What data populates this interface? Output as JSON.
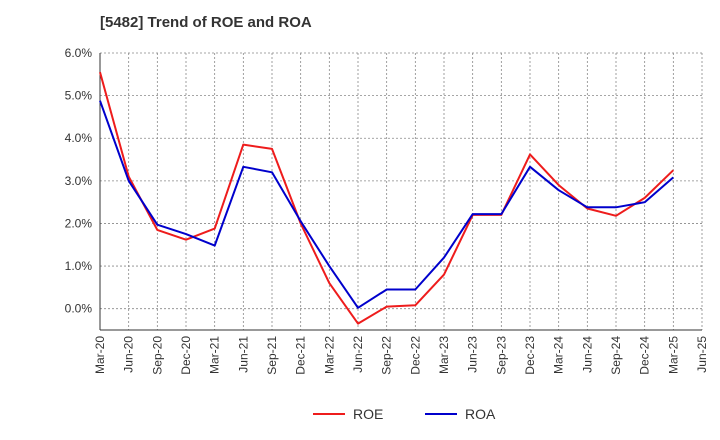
{
  "chart_data": {
    "type": "line",
    "title": "[5482]  Trend of ROE and ROA",
    "xlabel": "",
    "ylabel": "",
    "x": [
      "Mar-20",
      "Jun-20",
      "Sep-20",
      "Dec-20",
      "Mar-21",
      "Jun-21",
      "Sep-21",
      "Dec-21",
      "Mar-22",
      "Jun-22",
      "Sep-22",
      "Dec-22",
      "Mar-23",
      "Jun-23",
      "Sep-23",
      "Dec-23",
      "Mar-24",
      "Jun-24",
      "Sep-24",
      "Dec-24",
      "Mar-25",
      "Jun-25"
    ],
    "ylim": [
      -0.5,
      6.0
    ],
    "yticks": [
      "6.0%",
      "5.0%",
      "4.0%",
      "3.0%",
      "2.0%",
      "1.0%",
      "0.0%"
    ],
    "ytick_values": [
      6.0,
      5.0,
      4.0,
      3.0,
      2.0,
      1.0,
      0.0
    ],
    "grid": true,
    "legend": "bottom",
    "series": [
      {
        "name": "ROE",
        "color": "#ee1c1c",
        "values": [
          5.55,
          3.1,
          1.85,
          1.62,
          1.88,
          3.85,
          3.75,
          2.0,
          0.6,
          -0.35,
          0.05,
          0.08,
          0.8,
          2.2,
          2.2,
          3.62,
          2.9,
          2.35,
          2.18,
          2.6,
          3.25,
          null
        ]
      },
      {
        "name": "ROA",
        "color": "#0000cc",
        "values": [
          4.88,
          3.0,
          1.97,
          1.75,
          1.48,
          3.33,
          3.2,
          2.05,
          1.0,
          0.02,
          0.45,
          0.45,
          1.2,
          2.22,
          2.22,
          3.33,
          2.78,
          2.38,
          2.38,
          2.5,
          3.08,
          null
        ]
      }
    ]
  }
}
